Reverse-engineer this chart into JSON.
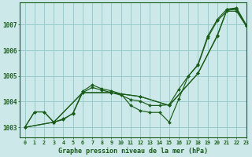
{
  "background_color": "#cce8e8",
  "grid_color": "#99cccc",
  "line_color": "#1a5c1a",
  "title": "Graphe pression niveau de la mer (hPa)",
  "xlim": [
    -0.5,
    23
  ],
  "ylim": [
    1002.6,
    1007.85
  ],
  "yticks": [
    1003,
    1004,
    1005,
    1006,
    1007
  ],
  "xticks": [
    0,
    1,
    2,
    3,
    4,
    5,
    6,
    7,
    8,
    9,
    10,
    11,
    12,
    13,
    14,
    15,
    16,
    17,
    18,
    19,
    20,
    21,
    22,
    23
  ],
  "series": [
    {
      "x": [
        0,
        1,
        2,
        3,
        4,
        5,
        6,
        7,
        8,
        9,
        10,
        11,
        12,
        13,
        14,
        15,
        16,
        17,
        18,
        19,
        20,
        21,
        22,
        23
      ],
      "y": [
        1003.0,
        1003.6,
        1003.6,
        1003.2,
        1003.3,
        1003.55,
        1004.4,
        1004.65,
        1004.5,
        1004.42,
        1004.3,
        1003.85,
        1003.65,
        1003.58,
        1003.58,
        1003.2,
        1004.1,
        1005.0,
        1005.45,
        1006.55,
        1007.2,
        1007.6,
        1007.65,
        1007.0
      ]
    },
    {
      "x": [
        0,
        1,
        2,
        3,
        4,
        5,
        6,
        7,
        8,
        9,
        10,
        11,
        12,
        13,
        14,
        15,
        16,
        17,
        18,
        19,
        20,
        21,
        22,
        23
      ],
      "y": [
        1003.0,
        1003.6,
        1003.6,
        1003.2,
        1003.33,
        1003.53,
        1004.35,
        1004.55,
        1004.45,
        1004.35,
        1004.25,
        1004.08,
        1004.02,
        1003.85,
        1003.85,
        1003.88,
        1004.48,
        1005.0,
        1005.42,
        1006.48,
        1007.15,
        1007.52,
        1007.52,
        1006.95
      ]
    },
    {
      "x": [
        0,
        3,
        6,
        9,
        12,
        15,
        18,
        20,
        21,
        22,
        23
      ],
      "y": [
        1003.0,
        1003.2,
        1004.35,
        1004.35,
        1004.2,
        1003.85,
        1005.1,
        1006.55,
        1007.55,
        1007.6,
        1006.95
      ]
    },
    {
      "x": [
        0,
        3,
        6,
        9,
        12,
        15,
        18,
        20,
        21,
        22,
        23
      ],
      "y": [
        1003.0,
        1003.2,
        1004.35,
        1004.35,
        1004.2,
        1003.85,
        1005.1,
        1006.58,
        1007.58,
        1007.62,
        1006.98
      ]
    }
  ]
}
